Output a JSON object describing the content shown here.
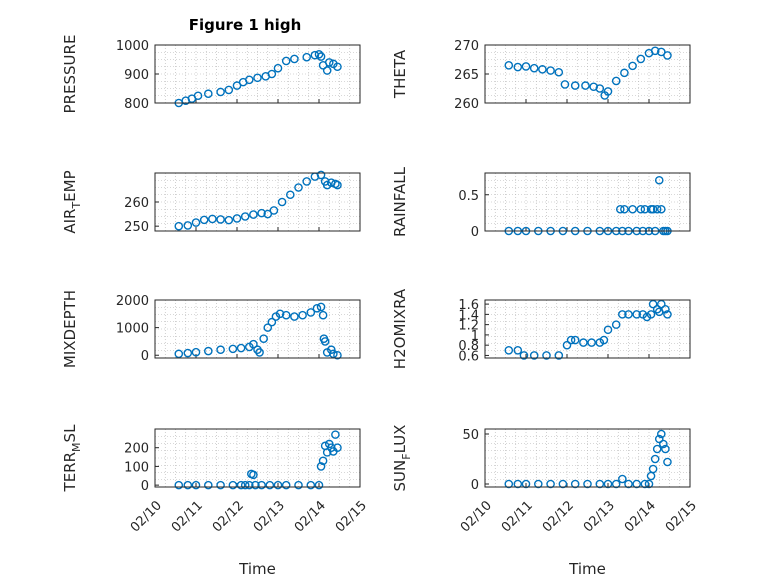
{
  "figure": {
    "title": "Figure 1 high",
    "xlabel": "Time"
  },
  "colors": {
    "marker": "#0072BD",
    "axis": "#262626",
    "grid": "#b0b0b0"
  },
  "x_ticks": [
    "02/10",
    "02/11",
    "02/12",
    "02/13",
    "02/14",
    "02/15"
  ],
  "chart_data": [
    {
      "type": "scatter",
      "ylabel": "PRESSURE",
      "ylabel_sub": "",
      "ylabel_tail": "",
      "xlim": [
        10.0,
        15.0
      ],
      "ylim": [
        800,
        1000
      ],
      "y_ticks": [
        800,
        900,
        1000
      ],
      "x": [
        10.58,
        10.75,
        10.9,
        11.05,
        11.3,
        11.6,
        11.8,
        12.0,
        12.15,
        12.3,
        12.5,
        12.7,
        12.85,
        13.0,
        13.2,
        13.4,
        13.7,
        13.9,
        14.0,
        14.05,
        14.1,
        14.2,
        14.25,
        14.35,
        14.45
      ],
      "y": [
        800,
        808,
        815,
        825,
        832,
        838,
        845,
        860,
        872,
        880,
        887,
        892,
        900,
        920,
        945,
        952,
        958,
        965,
        968,
        960,
        930,
        912,
        940,
        935,
        925
      ]
    },
    {
      "type": "scatter",
      "ylabel": "THETA",
      "ylabel_sub": "",
      "ylabel_tail": "",
      "xlim": [
        10.0,
        15.0
      ],
      "ylim": [
        260,
        270
      ],
      "y_ticks": [
        260,
        265,
        270
      ],
      "x": [
        10.58,
        10.8,
        11.0,
        11.2,
        11.4,
        11.6,
        11.8,
        11.95,
        12.2,
        12.45,
        12.65,
        12.8,
        12.92,
        13.0,
        13.2,
        13.4,
        13.6,
        13.8,
        14.0,
        14.15,
        14.3,
        14.45
      ],
      "y": [
        266.5,
        266.2,
        266.3,
        266.0,
        265.8,
        265.6,
        265.3,
        263.2,
        263.0,
        263.0,
        262.8,
        262.5,
        261.3,
        262.0,
        263.8,
        265.2,
        266.4,
        267.6,
        268.6,
        269.0,
        268.8,
        268.2
      ]
    },
    {
      "type": "scatter",
      "ylabel": "AIR",
      "ylabel_sub": "T",
      "ylabel_tail": "EMP",
      "xlim": [
        10.0,
        15.0
      ],
      "ylim": [
        248,
        272
      ],
      "y_ticks": [
        250,
        260
      ],
      "x": [
        10.58,
        10.8,
        11.0,
        11.2,
        11.4,
        11.6,
        11.8,
        12.0,
        12.2,
        12.4,
        12.6,
        12.75,
        12.9,
        13.1,
        13.3,
        13.5,
        13.7,
        13.9,
        14.05,
        14.15,
        14.2,
        14.3,
        14.4,
        14.45
      ],
      "y": [
        250,
        250.3,
        251.5,
        252.6,
        253.0,
        252.8,
        252.5,
        253.2,
        254.0,
        254.8,
        255.4,
        255.0,
        256.5,
        260.0,
        263.0,
        266.0,
        268.5,
        270.5,
        271.2,
        268.5,
        267.0,
        268.0,
        267.5,
        267.0
      ]
    },
    {
      "type": "scatter",
      "ylabel": "RAINFALL",
      "ylabel_sub": "",
      "ylabel_tail": "",
      "xlim": [
        10.0,
        15.0
      ],
      "ylim": [
        0,
        0.8
      ],
      "y_ticks": [
        0,
        0.5
      ],
      "x": [
        10.58,
        10.8,
        11.0,
        11.3,
        11.6,
        11.9,
        12.2,
        12.5,
        12.8,
        13.0,
        13.2,
        13.3,
        13.35,
        13.4,
        13.5,
        13.6,
        13.7,
        13.8,
        13.85,
        13.9,
        14.0,
        14.05,
        14.1,
        14.15,
        14.2,
        14.25,
        14.3,
        14.35,
        14.4,
        14.45
      ],
      "y": [
        0,
        0,
        0,
        0,
        0,
        0,
        0,
        0,
        0,
        0,
        0,
        0.3,
        0,
        0.3,
        0,
        0.3,
        0,
        0.3,
        0,
        0.3,
        0,
        0.3,
        0.3,
        0,
        0.3,
        0.7,
        0.3,
        0,
        0,
        0
      ]
    },
    {
      "type": "scatter",
      "ylabel": "MIXDEPTH",
      "ylabel_sub": "",
      "ylabel_tail": "",
      "xlim": [
        10.0,
        15.0
      ],
      "ylim": [
        -100,
        2000
      ],
      "y_ticks": [
        0,
        1000,
        2000
      ],
      "x": [
        10.58,
        10.8,
        11.0,
        11.3,
        11.6,
        11.9,
        12.1,
        12.3,
        12.4,
        12.5,
        12.55,
        12.65,
        12.75,
        12.85,
        12.95,
        13.05,
        13.2,
        13.4,
        13.6,
        13.8,
        13.95,
        14.05,
        14.1,
        14.12,
        14.15,
        14.2,
        14.3,
        14.35,
        14.45
      ],
      "y": [
        50,
        80,
        110,
        150,
        200,
        230,
        260,
        300,
        400,
        200,
        100,
        600,
        1000,
        1200,
        1400,
        1500,
        1450,
        1400,
        1450,
        1550,
        1700,
        1750,
        1450,
        600,
        500,
        100,
        200,
        50,
        0
      ]
    },
    {
      "type": "scatter",
      "ylabel": "H2OMIXRA",
      "ylabel_sub": "",
      "ylabel_tail": "",
      "xlim": [
        10.0,
        15.0
      ],
      "ylim": [
        0.55,
        1.68
      ],
      "y_ticks": [
        0.6,
        0.8,
        1,
        1.2,
        1.4,
        1.6
      ],
      "x": [
        10.58,
        10.8,
        10.95,
        11.2,
        11.5,
        11.8,
        12.0,
        12.1,
        12.2,
        12.4,
        12.6,
        12.8,
        12.9,
        13.0,
        13.2,
        13.35,
        13.5,
        13.7,
        13.85,
        13.95,
        14.05,
        14.1,
        14.2,
        14.25,
        14.3,
        14.4,
        14.45
      ],
      "y": [
        0.7,
        0.7,
        0.6,
        0.6,
        0.6,
        0.6,
        0.8,
        0.9,
        0.9,
        0.85,
        0.85,
        0.85,
        0.9,
        1.1,
        1.2,
        1.4,
        1.4,
        1.4,
        1.4,
        1.35,
        1.4,
        1.6,
        1.5,
        1.45,
        1.6,
        1.5,
        1.4
      ]
    },
    {
      "type": "scatter",
      "ylabel": "TERR",
      "ylabel_sub": "M",
      "ylabel_tail": "SL",
      "xlim": [
        10.0,
        15.0
      ],
      "ylim": [
        -10,
        300
      ],
      "y_ticks": [
        0,
        100,
        200
      ],
      "x": [
        10.58,
        10.8,
        11.0,
        11.3,
        11.6,
        11.9,
        12.1,
        12.2,
        12.3,
        12.35,
        12.4,
        12.45,
        12.6,
        12.8,
        13.0,
        13.2,
        13.5,
        13.8,
        14.0,
        14.05,
        14.1,
        14.15,
        14.2,
        14.25,
        14.3,
        14.35,
        14.4,
        14.45
      ],
      "y": [
        0,
        0,
        0,
        0,
        0,
        0,
        0,
        0,
        0,
        60,
        55,
        0,
        0,
        0,
        0,
        0,
        0,
        0,
        0,
        100,
        130,
        210,
        175,
        220,
        200,
        180,
        270,
        200
      ]
    },
    {
      "type": "scatter",
      "ylabel": "SUN",
      "ylabel_sub": "F",
      "ylabel_tail": "LUX",
      "xlim": [
        10.0,
        15.0
      ],
      "ylim": [
        -3,
        55
      ],
      "y_ticks": [
        0,
        50
      ],
      "x": [
        10.58,
        10.8,
        11.0,
        11.3,
        11.6,
        11.9,
        12.2,
        12.5,
        12.8,
        13.0,
        13.2,
        13.35,
        13.5,
        13.7,
        13.9,
        14.0,
        14.05,
        14.1,
        14.15,
        14.2,
        14.25,
        14.3,
        14.35,
        14.4,
        14.45
      ],
      "y": [
        0,
        0,
        0,
        0,
        0,
        0,
        0,
        0,
        0,
        0,
        0,
        5,
        0,
        0,
        0,
        0,
        8,
        15,
        25,
        35,
        45,
        50,
        40,
        35,
        22
      ]
    }
  ]
}
